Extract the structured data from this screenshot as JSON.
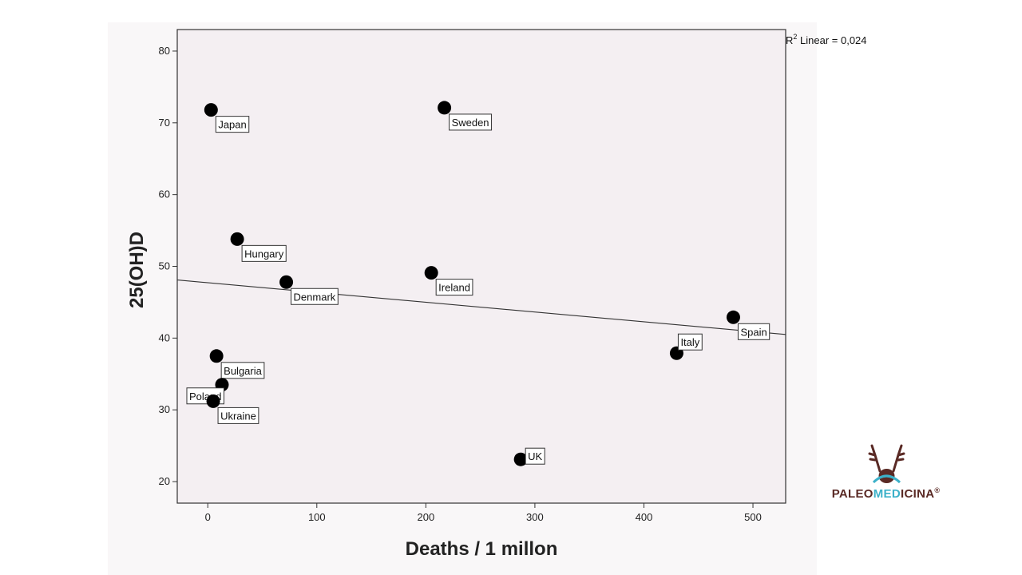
{
  "chart_data": {
    "type": "scatter",
    "title": "",
    "xlabel": "Deaths / 1 millon",
    "ylabel": "25(OH)D",
    "xlim": [
      -28,
      530
    ],
    "ylim": [
      17,
      83
    ],
    "xticks": [
      0,
      100,
      200,
      300,
      400,
      500
    ],
    "yticks": [
      20,
      30,
      40,
      50,
      60,
      70,
      80
    ],
    "points": [
      {
        "label": "Japan",
        "x": 3,
        "y": 71.8
      },
      {
        "label": "Sweden",
        "x": 217,
        "y": 72.1
      },
      {
        "label": "Hungary",
        "x": 27,
        "y": 53.8
      },
      {
        "label": "Denmark",
        "x": 72,
        "y": 47.8
      },
      {
        "label": "Ireland",
        "x": 205,
        "y": 49.1
      },
      {
        "label": "Spain",
        "x": 482,
        "y": 42.9
      },
      {
        "label": "Italy",
        "x": 430,
        "y": 37.9
      },
      {
        "label": "Bulgaria",
        "x": 8,
        "y": 37.5
      },
      {
        "label": "Poland",
        "x": 13,
        "y": 33.5
      },
      {
        "label": "Ukraine",
        "x": 5,
        "y": 31.2
      },
      {
        "label": "UK",
        "x": 287,
        "y": 23.1
      }
    ],
    "fit_line": {
      "x": [
        -28,
        530
      ],
      "y": [
        48.1,
        40.5
      ]
    },
    "annotation": {
      "prefix": "R",
      "sup": "2",
      "text": " Linear = 0,024"
    },
    "grid": false
  },
  "logo": {
    "part1": "PALEO",
    "part2": "MED",
    "part3": "ICINA",
    "mark": "®"
  }
}
